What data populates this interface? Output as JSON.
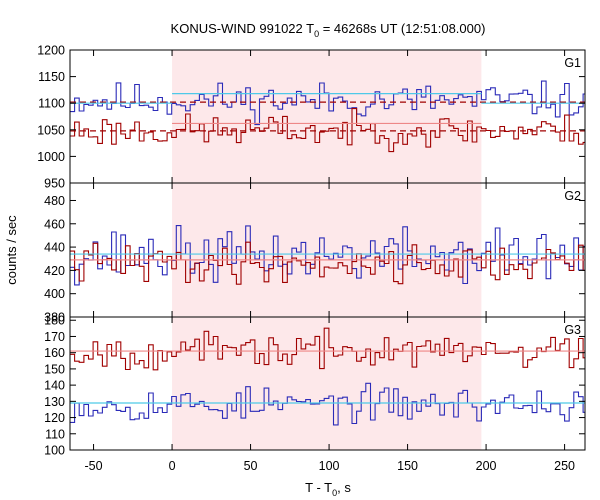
{
  "chart_data": {
    "type": "line",
    "title_prefix": "KONUS-WIND 991022 T",
    "title_sub": "0",
    "title_suffix": " = 46268s UT (12:51:08.000)",
    "xlabel_prefix": "T - T",
    "xlabel_sub": "0",
    "xlabel_suffix": ", s",
    "ylabel": "counts / sec",
    "xlim": [
      -65,
      263
    ],
    "x_ticks": [
      -50,
      0,
      50,
      100,
      150,
      200,
      250
    ],
    "x_tick_labels": [
      "-50",
      "0",
      "50",
      "100",
      "150",
      "200",
      "250"
    ],
    "shaded_interval": [
      0,
      197
    ],
    "shade_color": "#fde8ea",
    "panels": [
      {
        "name": "G1",
        "ylim": [
          950,
          1200
        ],
        "y_ticks": [
          950,
          1000,
          1050,
          1100,
          1150,
          1200
        ],
        "y_tick_labels": [
          "950",
          "1000",
          "1050",
          "1100",
          "1150",
          "1200"
        ],
        "series": [
          {
            "color": "#2b2bb8",
            "mean": 1105,
            "amp": 22,
            "seed": 11
          },
          {
            "color": "#a00000",
            "mean": 1048,
            "amp": 20,
            "seed": 23
          }
        ],
        "levels": [
          {
            "value": 1102,
            "style": "dashed",
            "color": "#a00000"
          },
          {
            "value": 1048,
            "style": "dashed",
            "color": "#a00000"
          },
          {
            "value": 1100,
            "style": "solid",
            "color": "#4ec9e8",
            "x_end": 0
          },
          {
            "value": 1118,
            "style": "solid",
            "color": "#4ec9e8",
            "x_start": 0,
            "x_end": 197
          },
          {
            "value": 1100,
            "style": "solid",
            "color": "#4ec9e8",
            "x_start": 197
          },
          {
            "value": 1062,
            "style": "solid",
            "color": "#ee8888",
            "x_start": 0,
            "x_end": 197
          }
        ]
      },
      {
        "name": "G2",
        "ylim": [
          380,
          495
        ],
        "y_ticks": [
          380,
          400,
          420,
          440,
          460,
          480
        ],
        "y_tick_labels": [
          "380",
          "400",
          "420",
          "440",
          "460",
          "480"
        ],
        "series": [
          {
            "color": "#2b2bb8",
            "mean": 433,
            "amp": 15,
            "seed": 37
          },
          {
            "color": "#a00000",
            "mean": 426,
            "amp": 11,
            "seed": 41
          }
        ],
        "levels": [
          {
            "value": 434,
            "style": "solid",
            "color": "#4ec9e8"
          },
          {
            "value": 429,
            "style": "solid",
            "color": "#ee8888"
          }
        ]
      },
      {
        "name": "G3",
        "ylim": [
          100,
          182
        ],
        "y_ticks": [
          100,
          110,
          120,
          130,
          140,
          150,
          160,
          170,
          180
        ],
        "y_tick_labels": [
          "100",
          "110",
          "120",
          "130",
          "140",
          "150",
          "160",
          "170",
          "180"
        ],
        "series": [
          {
            "color": "#2b2bb8",
            "mean": 128,
            "amp": 7,
            "seed": 53
          },
          {
            "color": "#a00000",
            "mean": 161,
            "amp": 7,
            "seed": 67
          }
        ],
        "levels": [
          {
            "value": 129,
            "style": "solid",
            "color": "#4ec9e8"
          },
          {
            "value": 161,
            "style": "solid",
            "color": "#ee8888"
          }
        ]
      }
    ]
  }
}
